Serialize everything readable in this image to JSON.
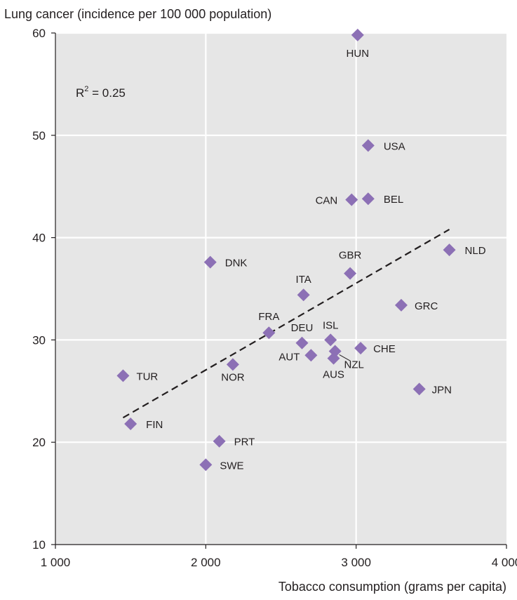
{
  "chart_data": {
    "type": "scatter",
    "ylabel": "Lung cancer (incidence per 100 000 population)",
    "xlabel": "Tobacco consumption (grams per capita)",
    "xlim": [
      1000,
      4000
    ],
    "ylim": [
      10,
      60
    ],
    "x_ticks": [
      {
        "value": 1000,
        "label": "1 000"
      },
      {
        "value": 2000,
        "label": "2 000"
      },
      {
        "value": 3000,
        "label": "3 000"
      },
      {
        "value": 4000,
        "label": "4 000"
      }
    ],
    "y_ticks": [
      {
        "value": 10,
        "label": "10"
      },
      {
        "value": 20,
        "label": "20"
      },
      {
        "value": 30,
        "label": "30"
      },
      {
        "value": 40,
        "label": "40"
      },
      {
        "value": 50,
        "label": "50"
      },
      {
        "value": 60,
        "label": "60"
      }
    ],
    "grid": true,
    "annotation": {
      "base": "R",
      "exp": "2",
      "rest": " = 0.25"
    },
    "trendline": {
      "style": "dashed",
      "x": [
        1450,
        3620
      ],
      "y": [
        22.4,
        40.8
      ]
    },
    "points": [
      {
        "label": "HUN",
        "x": 3010,
        "y": 59.8
      },
      {
        "label": "USA",
        "x": 3080,
        "y": 49.0
      },
      {
        "label": "CAN",
        "x": 2970,
        "y": 43.7
      },
      {
        "label": "BEL",
        "x": 3080,
        "y": 43.8
      },
      {
        "label": "NLD",
        "x": 3620,
        "y": 38.8
      },
      {
        "label": "DNK",
        "x": 2030,
        "y": 37.6
      },
      {
        "label": "GBR",
        "x": 2960,
        "y": 36.5
      },
      {
        "label": "ITA",
        "x": 2650,
        "y": 34.4
      },
      {
        "label": "GRC",
        "x": 3300,
        "y": 33.4
      },
      {
        "label": "FRA",
        "x": 2420,
        "y": 30.7
      },
      {
        "label": "DEU",
        "x": 2640,
        "y": 29.7
      },
      {
        "label": "ISL",
        "x": 2830,
        "y": 30.0
      },
      {
        "label": "CHE",
        "x": 3030,
        "y": 29.2
      },
      {
        "label": "AUT",
        "x": 2700,
        "y": 28.5
      },
      {
        "label": "NZL",
        "x": 2860,
        "y": 28.9
      },
      {
        "label": "AUS",
        "x": 2850,
        "y": 28.2
      },
      {
        "label": "NOR",
        "x": 2180,
        "y": 27.6
      },
      {
        "label": "TUR",
        "x": 1450,
        "y": 26.5
      },
      {
        "label": "JPN",
        "x": 3420,
        "y": 25.2
      },
      {
        "label": "FIN",
        "x": 1500,
        "y": 21.8
      },
      {
        "label": "PRT",
        "x": 2090,
        "y": 20.1
      },
      {
        "label": "SWE",
        "x": 2000,
        "y": 17.8
      }
    ],
    "marker_color": "#8c70b5",
    "plot_background": "#e6e6e6",
    "trend_color": "#231f20"
  }
}
